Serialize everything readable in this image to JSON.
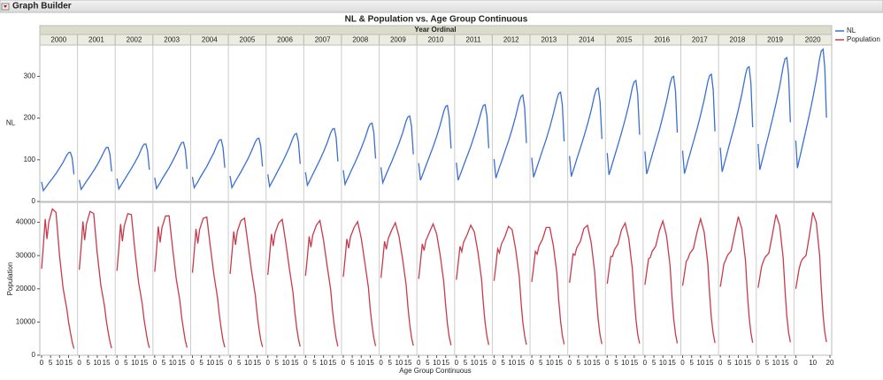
{
  "window_title": "Graph Builder",
  "chart_data": {
    "type": "line",
    "title": "NL & Population vs. Age Group Continuous",
    "facet_label": "Year Ordinal",
    "x_label": "Age Group Continuous",
    "x": [
      0,
      1,
      2,
      3,
      4,
      6,
      8,
      10,
      12,
      14,
      15,
      16,
      17,
      18
    ],
    "xlim": [
      0,
      19
    ],
    "xticks": [
      0,
      5,
      10,
      15
    ],
    "series": [
      {
        "name": "NL",
        "color": "#3b6fd1",
        "y_label": "NL",
        "ylim": [
          0,
          375
        ],
        "yticks": [
          0,
          100,
          200,
          300
        ]
      },
      {
        "name": "Population",
        "color": "#c83a4c",
        "y_label": "Population",
        "ylim": [
          0,
          46000
        ],
        "yticks": [
          0,
          10000,
          20000,
          30000,
          40000
        ]
      }
    ],
    "panels": [
      {
        "name": "2000",
        "series": [
          {
            "values": [
              47,
              26,
              32,
              38,
              44,
              55,
              67,
              80,
              94,
              111,
              117,
              118,
              104,
              65
            ]
          },
          {
            "values": [
              26000,
              33000,
              41000,
              35000,
              40000,
              44000,
              43000,
              30000,
              20000,
              14000,
              10000,
              7000,
              4000,
              2000
            ]
          }
        ]
      },
      {
        "name": "2001",
        "series": [
          {
            "values": [
              52,
              29,
              35,
              42,
              48,
              61,
              74,
              88,
              104,
              122,
              129,
              130,
              114,
              72
            ]
          },
          {
            "values": [
              25700,
              32500,
              40250,
              34650,
              39450,
              43300,
              42650,
              30650,
              21000,
              14800,
              10500,
              7250,
              4150,
              2100
            ]
          }
        ]
      },
      {
        "name": "2002",
        "series": [
          {
            "values": [
              55,
              30,
              37,
              44,
              51,
              65,
              79,
              94,
              110,
              130,
              137,
              138,
              121,
              76
            ]
          },
          {
            "values": [
              25400,
              32000,
              39500,
              34300,
              38900,
              42600,
              42300,
              31300,
              22000,
              15600,
              11000,
              7500,
              4300,
              2200
            ]
          }
        ]
      },
      {
        "name": "2003",
        "series": [
          {
            "values": [
              57,
              31,
              38,
              45,
              53,
              67,
              81,
              97,
              114,
              133,
              141,
              142,
              125,
              78
            ]
          },
          {
            "values": [
              25100,
              31500,
              38750,
              33950,
              38350,
              41900,
              41950,
              31950,
              23000,
              16400,
              11500,
              7750,
              4450,
              2300
            ]
          }
        ]
      },
      {
        "name": "2004",
        "series": [
          {
            "values": [
              59,
              33,
              40,
              47,
              55,
              70,
              84,
              101,
              118,
              139,
              147,
              148,
              130,
              81
            ]
          },
          {
            "values": [
              24800,
              31000,
              38000,
              33600,
              37800,
              41200,
              41600,
              32600,
              24000,
              17200,
              12000,
              8000,
              4600,
              2400
            ]
          }
        ]
      },
      {
        "name": "2005",
        "series": [
          {
            "values": [
              61,
              33,
              41,
              49,
              56,
              71,
              87,
              103,
              122,
              143,
              150,
              152,
              134,
              84
            ]
          },
          {
            "values": [
              24500,
              30500,
              37250,
              33250,
              37250,
              40500,
              41250,
              33250,
              25000,
              18000,
              12500,
              8250,
              4750,
              2500
            ]
          }
        ]
      },
      {
        "name": "2006",
        "series": [
          {
            "values": [
              65,
              36,
              44,
              52,
              60,
              77,
              93,
              111,
              130,
              153,
              161,
              163,
              143,
              90
            ]
          },
          {
            "values": [
              24200,
              30000,
              36500,
              32900,
              36700,
              39800,
              40900,
              33900,
              26000,
              18800,
              13000,
              8500,
              4900,
              2600
            ]
          }
        ]
      },
      {
        "name": "2007",
        "series": [
          {
            "values": [
              70,
              39,
              47,
              56,
              65,
              82,
              100,
              119,
              140,
              165,
              173,
              175,
              154,
              96
            ]
          },
          {
            "values": [
              23900,
              29500,
              35750,
              32550,
              36150,
              39100,
              40550,
              34550,
              27000,
              19600,
              13500,
              8750,
              5050,
              2700
            ]
          }
        ]
      },
      {
        "name": "2008",
        "series": [
          {
            "values": [
              75,
              41,
              51,
              60,
              70,
              88,
              107,
              128,
              150,
              177,
              186,
              188,
              165,
              103
            ]
          },
          {
            "values": [
              23600,
              29000,
              35000,
              32200,
              35600,
              38400,
              40200,
              35200,
              28000,
              20400,
              14000,
              9000,
              5200,
              2800
            ]
          }
        ]
      },
      {
        "name": "2009",
        "series": [
          {
            "values": [
              82,
              45,
              55,
              66,
              76,
              96,
              117,
              139,
              164,
              193,
              203,
              205,
              180,
              113
            ]
          },
          {
            "values": [
              23300,
              28500,
              34250,
              31850,
              35050,
              37700,
              39850,
              35850,
              29000,
              21200,
              14500,
              9250,
              5350,
              2900
            ]
          }
        ]
      },
      {
        "name": "2010",
        "series": [
          {
            "values": [
              92,
              51,
              62,
              74,
              85,
              108,
              131,
              156,
              184,
              216,
              228,
              230,
              202,
              127
            ]
          },
          {
            "values": [
              23000,
              28000,
              33500,
              31500,
              34500,
              37000,
              39500,
              36500,
              30000,
              22000,
              15000,
              9500,
              5500,
              3000
            ]
          }
        ]
      },
      {
        "name": "2011",
        "series": [
          {
            "values": [
              93,
              51,
              63,
              74,
              86,
              109,
              132,
              158,
              186,
              218,
              230,
              232,
              204,
              128
            ]
          },
          {
            "values": [
              22700,
              27500,
              32750,
              31150,
              33950,
              36300,
              39150,
              37150,
              31000,
              22800,
              15500,
              9750,
              5650,
              3100
            ]
          }
        ]
      },
      {
        "name": "2012",
        "series": [
          {
            "values": [
              102,
              56,
              69,
              82,
              94,
              120,
              145,
              173,
              204,
              240,
              252,
              255,
              224,
              140
            ]
          },
          {
            "values": [
              22400,
              27000,
              32000,
              30800,
              33400,
              35600,
              38800,
              37800,
              32000,
              23600,
              16000,
              10000,
              5800,
              3200
            ]
          }
        ]
      },
      {
        "name": "2013",
        "series": [
          {
            "values": [
              105,
              58,
              71,
              84,
              97,
              123,
              149,
              178,
              210,
              246,
              259,
              262,
              231,
              144
            ]
          },
          {
            "values": [
              22100,
              26500,
              31250,
              30450,
              32850,
              34900,
              38450,
              38450,
              33000,
              24400,
              16500,
              10250,
              5950,
              3300
            ]
          }
        ]
      },
      {
        "name": "2014",
        "series": [
          {
            "values": [
              109,
              60,
              73,
              87,
              101,
              128,
              155,
              185,
              218,
              256,
              269,
              272,
              239,
              150
            ]
          },
          {
            "values": [
              21800,
              26000,
              30500,
              30100,
              32300,
              34200,
              38100,
              39100,
              34000,
              25200,
              17000,
              10500,
              6100,
              3400
            ]
          }
        ]
      },
      {
        "name": "2015",
        "series": [
          {
            "values": [
              116,
              64,
              78,
              93,
              107,
              136,
              165,
              197,
              232,
              273,
              287,
              290,
              255,
              160
            ]
          },
          {
            "values": [
              21500,
              25500,
              29750,
              29750,
              31750,
              33500,
              37750,
              39750,
              35000,
              26000,
              17500,
              10750,
              6250,
              3500
            ]
          }
        ]
      },
      {
        "name": "2016",
        "series": [
          {
            "values": [
              120,
              66,
              81,
              96,
              111,
              141,
              171,
              204,
              240,
              282,
              297,
              300,
              264,
              165
            ]
          },
          {
            "values": [
              21200,
              25000,
              29000,
              29400,
              31200,
              32800,
              37400,
              40400,
              36000,
              26800,
              18000,
              11000,
              6400,
              3600
            ]
          }
        ]
      },
      {
        "name": "2017",
        "series": [
          {
            "values": [
              122,
              67,
              82,
              98,
              113,
              143,
              174,
              207,
              244,
              287,
              302,
              305,
              268,
              168
            ]
          },
          {
            "values": [
              20900,
              24500,
              28250,
              29050,
              30650,
              32100,
              37050,
              41050,
              37000,
              27600,
              18500,
              11250,
              6550,
              3700
            ]
          }
        ]
      },
      {
        "name": "2018",
        "series": [
          {
            "values": [
              129,
              71,
              87,
              103,
              120,
              152,
              184,
              220,
              258,
              304,
              320,
              323,
              284,
              178
            ]
          },
          {
            "values": [
              20600,
              24000,
              27500,
              28700,
              30100,
              31400,
              36700,
              41700,
              38000,
              28400,
              19000,
              11500,
              6700,
              3800
            ]
          }
        ]
      },
      {
        "name": "2019",
        "series": [
          {
            "values": [
              138,
              76,
              93,
              110,
              128,
              162,
              197,
              235,
              276,
              324,
              342,
              345,
              304,
              190
            ]
          },
          {
            "values": [
              20300,
              23500,
              26750,
              28350,
              29550,
              30700,
              36350,
              42350,
              39000,
              29200,
              19500,
              11750,
              6850,
              3900
            ]
          }
        ]
      },
      {
        "name": "2020",
        "xlim": [
          0,
          20
        ],
        "xticks": [
          0,
          10,
          20
        ],
        "series": [
          {
            "values": [
              146,
              80,
              99,
              117,
              135,
              172,
              208,
              248,
              292,
              343,
              361,
              365,
              321,
              201
            ]
          },
          {
            "values": [
              20000,
              23000,
              26000,
              28000,
              29000,
              30000,
              36000,
              43000,
              40000,
              30000,
              20000,
              12000,
              7000,
              4000
            ]
          }
        ]
      }
    ]
  }
}
